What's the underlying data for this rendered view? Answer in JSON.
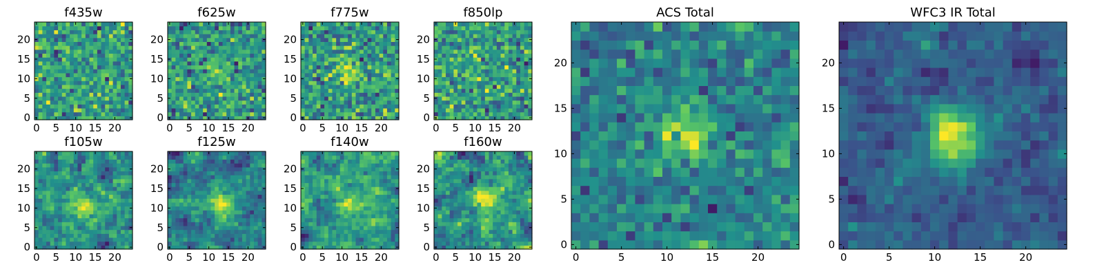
{
  "figure": {
    "description_colormap": "viridis",
    "background": "#ffffff"
  },
  "colormap": [
    "#440154",
    "#3b528b",
    "#21918c",
    "#5ec962",
    "#fde725"
  ],
  "chart_data": [
    {
      "type": "heatmap",
      "title": "f435w",
      "grid_size": 25,
      "xticks": [
        0,
        5,
        10,
        15,
        20
      ],
      "yticks": [
        0,
        5,
        10,
        15,
        20
      ],
      "xlim": [
        -0.5,
        24.5
      ],
      "ylim": [
        -0.5,
        24.5
      ],
      "seed": 11,
      "smooth": 0,
      "center": [
        12,
        12
      ],
      "peak": 0.05,
      "noise": 1.0
    },
    {
      "type": "heatmap",
      "title": "f625w",
      "grid_size": 25,
      "xticks": [
        0,
        5,
        10,
        15,
        20
      ],
      "yticks": [
        0,
        5,
        10,
        15,
        20
      ],
      "xlim": [
        -0.5,
        24.5
      ],
      "ylim": [
        -0.5,
        24.5
      ],
      "seed": 23,
      "smooth": 0,
      "center": [
        12,
        12
      ],
      "peak": 0.6,
      "noise": 1.0
    },
    {
      "type": "heatmap",
      "title": "f775w",
      "grid_size": 25,
      "xticks": [
        0,
        5,
        10,
        15,
        20
      ],
      "yticks": [
        0,
        5,
        10,
        15,
        20
      ],
      "xlim": [
        -0.5,
        24.5
      ],
      "ylim": [
        -0.5,
        24.5
      ],
      "seed": 37,
      "smooth": 0,
      "center": [
        12,
        12
      ],
      "peak": 0.7,
      "noise": 1.0
    },
    {
      "type": "heatmap",
      "title": "f850lp",
      "grid_size": 25,
      "xticks": [
        0,
        5,
        10,
        15,
        20
      ],
      "yticks": [
        0,
        5,
        10,
        15,
        20
      ],
      "xlim": [
        -0.5,
        24.5
      ],
      "ylim": [
        -0.5,
        24.5
      ],
      "seed": 41,
      "smooth": 0,
      "center": [
        12,
        12
      ],
      "peak": 0.2,
      "noise": 1.0
    },
    {
      "type": "heatmap",
      "title": "f105w",
      "grid_size": 25,
      "xticks": [
        0,
        5,
        10,
        15,
        20
      ],
      "yticks": [
        0,
        5,
        10,
        15,
        20
      ],
      "xlim": [
        -0.5,
        24.5
      ],
      "ylim": [
        -0.5,
        24.5
      ],
      "seed": 53,
      "smooth": 1,
      "center": [
        12,
        10
      ],
      "peak": 0.6,
      "noise": 1.0
    },
    {
      "type": "heatmap",
      "title": "f125w",
      "grid_size": 25,
      "xticks": [
        0,
        5,
        10,
        15,
        20
      ],
      "yticks": [
        0,
        5,
        10,
        15,
        20
      ],
      "xlim": [
        -0.5,
        24.5
      ],
      "ylim": [
        -0.5,
        24.5
      ],
      "seed": 67,
      "smooth": 1,
      "center": [
        13,
        11
      ],
      "peak": 0.9,
      "noise": 1.0
    },
    {
      "type": "heatmap",
      "title": "f140w",
      "grid_size": 25,
      "xticks": [
        0,
        5,
        10,
        15,
        20
      ],
      "yticks": [
        0,
        5,
        10,
        15,
        20
      ],
      "xlim": [
        -0.5,
        24.5
      ],
      "ylim": [
        -0.5,
        24.5
      ],
      "seed": 79,
      "smooth": 1,
      "center": [
        12,
        11
      ],
      "peak": 0.7,
      "noise": 1.0
    },
    {
      "type": "heatmap",
      "title": "f160w",
      "grid_size": 25,
      "xticks": [
        0,
        5,
        10,
        15,
        20
      ],
      "yticks": [
        0,
        5,
        10,
        15,
        20
      ],
      "xlim": [
        -0.5,
        24.5
      ],
      "ylim": [
        -0.5,
        24.5
      ],
      "seed": 83,
      "smooth": 1,
      "center": [
        13,
        12
      ],
      "peak": 0.8,
      "noise": 1.0
    },
    {
      "type": "heatmap",
      "title": "ACS Total",
      "grid_size": 25,
      "xticks": [
        0,
        5,
        10,
        15,
        20
      ],
      "yticks": [
        0,
        5,
        10,
        15,
        20
      ],
      "xlim": [
        -0.5,
        24.5
      ],
      "ylim": [
        -0.5,
        24.5
      ],
      "seed": 97,
      "smooth": 0,
      "center": [
        12,
        12
      ],
      "peak": 1.1,
      "noise": 0.8
    },
    {
      "type": "heatmap",
      "title": "WFC3 IR Total",
      "grid_size": 25,
      "xticks": [
        0,
        5,
        10,
        15,
        20
      ],
      "yticks": [
        0,
        5,
        10,
        15,
        20
      ],
      "xlim": [
        -0.5,
        24.5
      ],
      "ylim": [
        -0.5,
        24.5
      ],
      "seed": 101,
      "smooth": 1,
      "center": [
        12,
        12
      ],
      "peak": 1.6,
      "noise": 0.7
    }
  ]
}
